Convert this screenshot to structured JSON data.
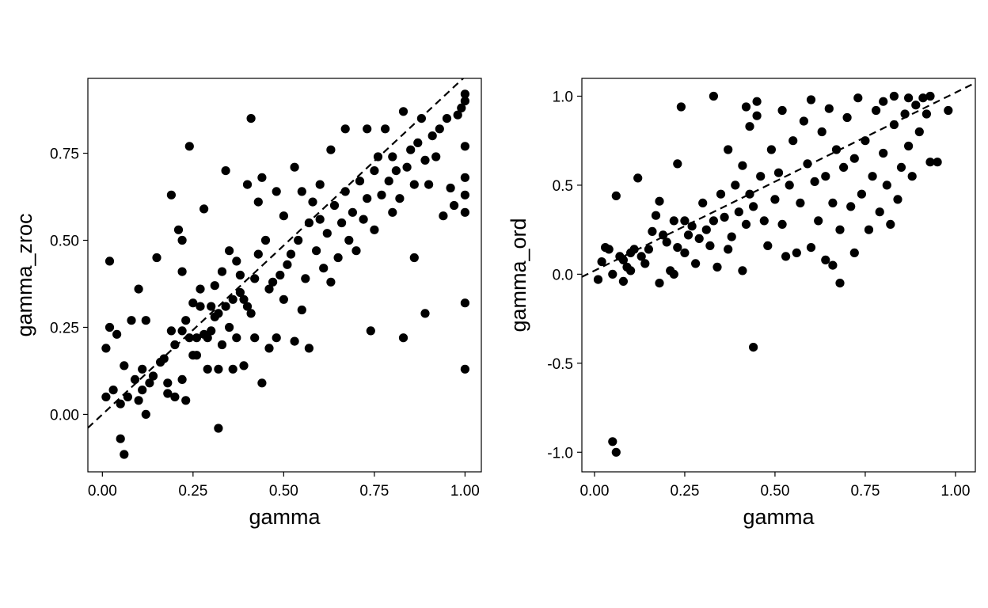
{
  "chart_data": [
    {
      "type": "scatter",
      "xlabel": "gamma",
      "ylabel": "gamma_zroc",
      "xlim": [
        -0.04,
        1.045
      ],
      "ylim": [
        -0.165,
        0.965
      ],
      "x_ticks": [
        "0.00",
        "0.25",
        "0.50",
        "0.75",
        "1.00"
      ],
      "y_ticks": [
        "0.00",
        "0.25",
        "0.50",
        "0.75"
      ],
      "x_tick_values": [
        0,
        0.25,
        0.5,
        0.75,
        1.0
      ],
      "y_tick_values": [
        0,
        0.25,
        0.5,
        0.75
      ],
      "reference_line": {
        "style": "dashed",
        "intercept": 0.0,
        "slope": 0.97
      },
      "grid": false,
      "points": [
        [
          0.01,
          0.19
        ],
        [
          0.01,
          0.05
        ],
        [
          0.02,
          0.44
        ],
        [
          0.02,
          0.25
        ],
        [
          0.03,
          0.07
        ],
        [
          0.04,
          0.23
        ],
        [
          0.05,
          0.03
        ],
        [
          0.05,
          -0.07
        ],
        [
          0.06,
          0.14
        ],
        [
          0.06,
          -0.115
        ],
        [
          0.07,
          0.05
        ],
        [
          0.08,
          0.27
        ],
        [
          0.09,
          0.1
        ],
        [
          0.1,
          0.36
        ],
        [
          0.1,
          0.04
        ],
        [
          0.11,
          0.07
        ],
        [
          0.11,
          0.13
        ],
        [
          0.12,
          0.27
        ],
        [
          0.12,
          0.0
        ],
        [
          0.13,
          0.09
        ],
        [
          0.14,
          0.11
        ],
        [
          0.15,
          0.45
        ],
        [
          0.16,
          0.15
        ],
        [
          0.17,
          0.16
        ],
        [
          0.18,
          0.09
        ],
        [
          0.18,
          0.06
        ],
        [
          0.19,
          0.63
        ],
        [
          0.19,
          0.24
        ],
        [
          0.2,
          0.2
        ],
        [
          0.2,
          0.05
        ],
        [
          0.21,
          0.53
        ],
        [
          0.22,
          0.5
        ],
        [
          0.22,
          0.24
        ],
        [
          0.22,
          0.41
        ],
        [
          0.22,
          0.1
        ],
        [
          0.23,
          0.04
        ],
        [
          0.23,
          0.27
        ],
        [
          0.24,
          0.77
        ],
        [
          0.24,
          0.22
        ],
        [
          0.25,
          0.32
        ],
        [
          0.25,
          0.17
        ],
        [
          0.26,
          0.17
        ],
        [
          0.26,
          0.22
        ],
        [
          0.27,
          0.31
        ],
        [
          0.27,
          0.36
        ],
        [
          0.28,
          0.59
        ],
        [
          0.28,
          0.23
        ],
        [
          0.29,
          0.22
        ],
        [
          0.29,
          0.13
        ],
        [
          0.3,
          0.31
        ],
        [
          0.3,
          0.24
        ],
        [
          0.31,
          0.28
        ],
        [
          0.31,
          0.37
        ],
        [
          0.32,
          0.29
        ],
        [
          0.32,
          0.13
        ],
        [
          0.32,
          -0.04
        ],
        [
          0.33,
          0.2
        ],
        [
          0.33,
          0.41
        ],
        [
          0.34,
          0.7
        ],
        [
          0.34,
          0.31
        ],
        [
          0.35,
          0.25
        ],
        [
          0.35,
          0.47
        ],
        [
          0.36,
          0.13
        ],
        [
          0.36,
          0.33
        ],
        [
          0.37,
          0.22
        ],
        [
          0.37,
          0.44
        ],
        [
          0.38,
          0.4
        ],
        [
          0.38,
          0.35
        ],
        [
          0.39,
          0.33
        ],
        [
          0.39,
          0.14
        ],
        [
          0.4,
          0.66
        ],
        [
          0.4,
          0.31
        ],
        [
          0.41,
          0.29
        ],
        [
          0.41,
          0.85
        ],
        [
          0.42,
          0.39
        ],
        [
          0.42,
          0.22
        ],
        [
          0.43,
          0.61
        ],
        [
          0.43,
          0.46
        ],
        [
          0.44,
          0.09
        ],
        [
          0.44,
          0.68
        ],
        [
          0.45,
          0.5
        ],
        [
          0.46,
          0.36
        ],
        [
          0.46,
          0.19
        ],
        [
          0.47,
          0.38
        ],
        [
          0.48,
          0.64
        ],
        [
          0.48,
          0.22
        ],
        [
          0.49,
          0.4
        ],
        [
          0.5,
          0.57
        ],
        [
          0.5,
          0.33
        ],
        [
          0.51,
          0.43
        ],
        [
          0.52,
          0.46
        ],
        [
          0.53,
          0.71
        ],
        [
          0.53,
          0.21
        ],
        [
          0.54,
          0.5
        ],
        [
          0.55,
          0.64
        ],
        [
          0.55,
          0.3
        ],
        [
          0.56,
          0.39
        ],
        [
          0.57,
          0.19
        ],
        [
          0.57,
          0.55
        ],
        [
          0.58,
          0.61
        ],
        [
          0.59,
          0.47
        ],
        [
          0.6,
          0.56
        ],
        [
          0.6,
          0.66
        ],
        [
          0.61,
          0.42
        ],
        [
          0.62,
          0.52
        ],
        [
          0.63,
          0.76
        ],
        [
          0.63,
          0.38
        ],
        [
          0.64,
          0.6
        ],
        [
          0.65,
          0.45
        ],
        [
          0.66,
          0.55
        ],
        [
          0.67,
          0.82
        ],
        [
          0.67,
          0.64
        ],
        [
          0.68,
          0.5
        ],
        [
          0.69,
          0.58
        ],
        [
          0.7,
          0.47
        ],
        [
          0.71,
          0.67
        ],
        [
          0.72,
          0.56
        ],
        [
          0.73,
          0.82
        ],
        [
          0.73,
          0.62
        ],
        [
          0.74,
          0.24
        ],
        [
          0.75,
          0.7
        ],
        [
          0.75,
          0.53
        ],
        [
          0.76,
          0.74
        ],
        [
          0.77,
          0.63
        ],
        [
          0.78,
          0.82
        ],
        [
          0.79,
          0.67
        ],
        [
          0.8,
          0.74
        ],
        [
          0.8,
          0.58
        ],
        [
          0.81,
          0.7
        ],
        [
          0.82,
          0.62
        ],
        [
          0.83,
          0.22
        ],
        [
          0.83,
          0.87
        ],
        [
          0.84,
          0.71
        ],
        [
          0.85,
          0.76
        ],
        [
          0.86,
          0.45
        ],
        [
          0.86,
          0.66
        ],
        [
          0.87,
          0.78
        ],
        [
          0.88,
          0.85
        ],
        [
          0.89,
          0.29
        ],
        [
          0.89,
          0.73
        ],
        [
          0.9,
          0.66
        ],
        [
          0.91,
          0.8
        ],
        [
          0.92,
          0.74
        ],
        [
          0.93,
          0.82
        ],
        [
          0.94,
          0.57
        ],
        [
          0.95,
          0.85
        ],
        [
          0.96,
          0.65
        ],
        [
          0.97,
          0.6
        ],
        [
          0.98,
          0.86
        ],
        [
          0.99,
          0.88
        ],
        [
          1.0,
          0.92
        ],
        [
          1.0,
          0.9
        ],
        [
          1.0,
          0.77
        ],
        [
          1.0,
          0.68
        ],
        [
          1.0,
          0.63
        ],
        [
          1.0,
          0.58
        ],
        [
          1.0,
          0.32
        ],
        [
          1.0,
          0.13
        ]
      ]
    },
    {
      "type": "scatter",
      "xlabel": "gamma",
      "ylabel": "gamma_ord",
      "xlim": [
        -0.035,
        1.055
      ],
      "ylim": [
        -1.11,
        1.1
      ],
      "x_ticks": [
        "0.00",
        "0.25",
        "0.50",
        "0.75",
        "1.00"
      ],
      "y_ticks": [
        "1.0",
        "0.5",
        "0.0",
        "-0.5",
        "-1.0"
      ],
      "x_tick_values": [
        0,
        0.25,
        0.5,
        0.75,
        1.0
      ],
      "y_tick_values": [
        1.0,
        0.5,
        0.0,
        -0.5,
        -1.0
      ],
      "reference_line": {
        "style": "dashed",
        "intercept": 0.02,
        "slope": 1.0
      },
      "grid": false,
      "points": [
        [
          0.01,
          -0.03
        ],
        [
          0.02,
          0.07
        ],
        [
          0.03,
          0.15
        ],
        [
          0.04,
          0.14
        ],
        [
          0.05,
          0.0
        ],
        [
          0.05,
          -0.94
        ],
        [
          0.06,
          0.44
        ],
        [
          0.06,
          -1.0
        ],
        [
          0.07,
          0.1
        ],
        [
          0.08,
          0.08
        ],
        [
          0.08,
          -0.04
        ],
        [
          0.09,
          0.04
        ],
        [
          0.1,
          0.12
        ],
        [
          0.1,
          0.02
        ],
        [
          0.11,
          0.14
        ],
        [
          0.12,
          0.54
        ],
        [
          0.13,
          0.1
        ],
        [
          0.14,
          0.06
        ],
        [
          0.15,
          0.14
        ],
        [
          0.16,
          0.24
        ],
        [
          0.17,
          0.33
        ],
        [
          0.18,
          -0.05
        ],
        [
          0.18,
          0.41
        ],
        [
          0.19,
          0.22
        ],
        [
          0.2,
          0.18
        ],
        [
          0.21,
          0.02
        ],
        [
          0.22,
          0.3
        ],
        [
          0.22,
          0.0
        ],
        [
          0.23,
          0.62
        ],
        [
          0.23,
          0.15
        ],
        [
          0.24,
          0.94
        ],
        [
          0.25,
          0.3
        ],
        [
          0.25,
          0.12
        ],
        [
          0.26,
          0.22
        ],
        [
          0.27,
          0.27
        ],
        [
          0.28,
          0.06
        ],
        [
          0.29,
          0.2
        ],
        [
          0.3,
          0.4
        ],
        [
          0.31,
          0.25
        ],
        [
          0.32,
          0.16
        ],
        [
          0.33,
          1.0
        ],
        [
          0.33,
          0.3
        ],
        [
          0.34,
          0.04
        ],
        [
          0.35,
          0.45
        ],
        [
          0.36,
          0.32
        ],
        [
          0.37,
          0.7
        ],
        [
          0.37,
          0.14
        ],
        [
          0.38,
          0.21
        ],
        [
          0.39,
          0.5
        ],
        [
          0.4,
          0.35
        ],
        [
          0.41,
          0.61
        ],
        [
          0.41,
          0.02
        ],
        [
          0.42,
          0.94
        ],
        [
          0.42,
          0.28
        ],
        [
          0.43,
          0.83
        ],
        [
          0.43,
          0.45
        ],
        [
          0.44,
          -0.41
        ],
        [
          0.44,
          0.38
        ],
        [
          0.45,
          0.89
        ],
        [
          0.45,
          0.97
        ],
        [
          0.46,
          0.55
        ],
        [
          0.47,
          0.3
        ],
        [
          0.48,
          0.16
        ],
        [
          0.49,
          0.7
        ],
        [
          0.5,
          0.42
        ],
        [
          0.51,
          0.57
        ],
        [
          0.52,
          0.28
        ],
        [
          0.52,
          0.92
        ],
        [
          0.53,
          0.1
        ],
        [
          0.54,
          0.5
        ],
        [
          0.55,
          0.75
        ],
        [
          0.56,
          0.12
        ],
        [
          0.57,
          0.4
        ],
        [
          0.58,
          0.86
        ],
        [
          0.59,
          0.62
        ],
        [
          0.6,
          0.15
        ],
        [
          0.6,
          0.98
        ],
        [
          0.61,
          0.52
        ],
        [
          0.62,
          0.3
        ],
        [
          0.63,
          0.8
        ],
        [
          0.64,
          0.08
        ],
        [
          0.64,
          0.55
        ],
        [
          0.65,
          0.93
        ],
        [
          0.66,
          0.4
        ],
        [
          0.66,
          0.05
        ],
        [
          0.67,
          0.7
        ],
        [
          0.68,
          0.25
        ],
        [
          0.68,
          -0.05
        ],
        [
          0.69,
          0.6
        ],
        [
          0.7,
          0.88
        ],
        [
          0.71,
          0.38
        ],
        [
          0.72,
          0.12
        ],
        [
          0.72,
          0.65
        ],
        [
          0.73,
          0.99
        ],
        [
          0.74,
          0.45
        ],
        [
          0.75,
          0.75
        ],
        [
          0.76,
          0.25
        ],
        [
          0.77,
          0.55
        ],
        [
          0.78,
          0.92
        ],
        [
          0.79,
          0.35
        ],
        [
          0.8,
          0.68
        ],
        [
          0.8,
          0.97
        ],
        [
          0.81,
          0.5
        ],
        [
          0.82,
          0.28
        ],
        [
          0.83,
          0.84
        ],
        [
          0.83,
          1.0
        ],
        [
          0.84,
          0.42
        ],
        [
          0.85,
          0.6
        ],
        [
          0.86,
          0.9
        ],
        [
          0.87,
          0.72
        ],
        [
          0.87,
          0.99
        ],
        [
          0.88,
          0.55
        ],
        [
          0.89,
          0.95
        ],
        [
          0.9,
          0.8
        ],
        [
          0.91,
          0.99
        ],
        [
          0.92,
          0.9
        ],
        [
          0.93,
          0.63
        ],
        [
          0.93,
          1.0
        ],
        [
          0.95,
          0.63
        ],
        [
          0.98,
          0.92
        ]
      ]
    }
  ]
}
